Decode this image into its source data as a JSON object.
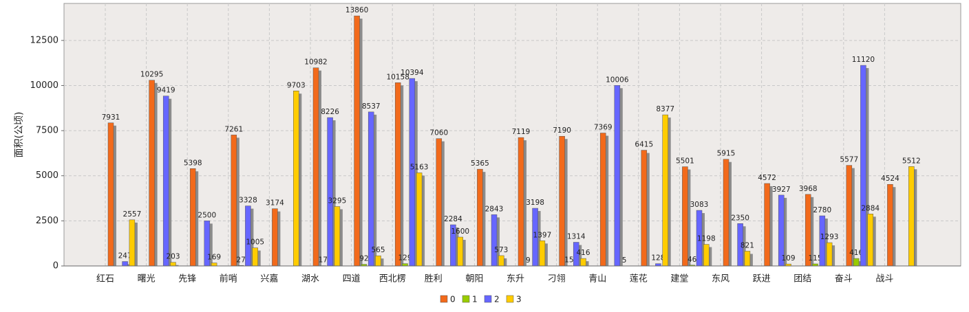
{
  "chart_data": {
    "type": "bar",
    "y_label": "面积(公顷)",
    "categories": [
      "红石",
      "曙光",
      "先锋",
      "前哨",
      "兴嘉",
      "湖水",
      "四道",
      "西北楞",
      "胜利",
      "朝阳",
      "东升",
      "刁翎",
      "青山",
      "莲花",
      "建堂",
      "东风",
      "跃进",
      "团结",
      "奋斗",
      "战斗"
    ],
    "series": [
      {
        "name": "0",
        "color": "#f26a1b",
        "values": [
          7931,
          10295,
          5398,
          7261,
          3174,
          10982,
          13860,
          10158,
          7060,
          5365,
          7119,
          7190,
          7369,
          6415,
          5501,
          5915,
          4572,
          3968,
          5577,
          4524
        ]
      },
      {
        "name": "1",
        "color": "#99cc00",
        "values": [
          null,
          null,
          null,
          27,
          null,
          17,
          92,
          129,
          null,
          null,
          9,
          15,
          null,
          null,
          46,
          null,
          null,
          115,
          416,
          null
        ]
      },
      {
        "name": "2",
        "color": "#6666ff",
        "values": [
          247,
          9419,
          2500,
          3328,
          null,
          8226,
          8537,
          10394,
          2284,
          2843,
          3198,
          1314,
          10006,
          128,
          3083,
          2350,
          3927,
          2780,
          11120,
          null
        ]
      },
      {
        "name": "3",
        "color": "#ffcc00",
        "values": [
          2557,
          203,
          169,
          1005,
          9703,
          3295,
          565,
          5163,
          1600,
          573,
          1397,
          416,
          5,
          8377,
          1198,
          821,
          109,
          1293,
          2884,
          5512
        ]
      }
    ],
    "ylim": [
      0,
      14550
    ],
    "yticks": [
      0,
      2500,
      5000,
      7500,
      10000,
      12500
    ],
    "grid": true,
    "legend": "bottom"
  }
}
